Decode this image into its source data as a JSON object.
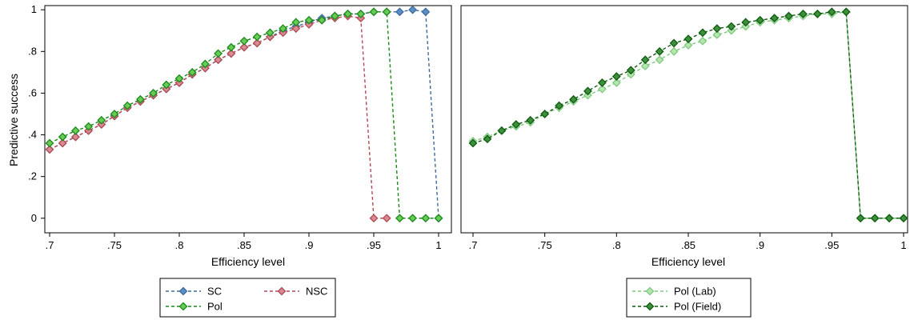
{
  "chart_data": [
    {
      "type": "line",
      "panel": "left",
      "xlabel": "Efficiency level",
      "ylabel": "Predictive success",
      "xlim": [
        0.7,
        1.0
      ],
      "ylim": [
        -0.07,
        1.02
      ],
      "xticks": [
        0.7,
        0.75,
        0.8,
        0.85,
        0.9,
        0.95,
        1
      ],
      "xtick_labels": [
        ".7",
        ".75",
        ".8",
        ".85",
        ".9",
        ".95",
        "1"
      ],
      "yticks": [
        0,
        0.2,
        0.4,
        0.6,
        0.8,
        1
      ],
      "ytick_labels": [
        "0",
        ".2",
        ".4",
        ".6",
        ".8",
        "1"
      ],
      "grid": false,
      "legend_position": "bottom",
      "x": [
        0.7,
        0.71,
        0.72,
        0.73,
        0.74,
        0.75,
        0.76,
        0.77,
        0.78,
        0.79,
        0.8,
        0.81,
        0.82,
        0.83,
        0.84,
        0.85,
        0.86,
        0.87,
        0.88,
        0.89,
        0.9,
        0.91,
        0.92,
        0.93,
        0.94,
        0.95,
        0.96,
        0.97,
        0.98,
        0.99,
        1.0
      ],
      "series": [
        {
          "name": "SC",
          "color": "#3f6a9c",
          "fill": "#5b8fc7",
          "dash": "4,3",
          "values": [
            0.33,
            0.36,
            0.39,
            0.42,
            0.45,
            0.49,
            0.53,
            0.56,
            0.59,
            0.62,
            0.65,
            0.69,
            0.72,
            0.76,
            0.79,
            0.82,
            0.84,
            0.87,
            0.9,
            0.92,
            0.94,
            0.96,
            0.97,
            0.98,
            0.98,
            0.99,
            0.99,
            0.99,
            1.0,
            0.99,
            0.0
          ]
        },
        {
          "name": "NSC",
          "color": "#b24a55",
          "fill": "#d98a92",
          "dash": "4,3",
          "values": [
            0.33,
            0.36,
            0.39,
            0.42,
            0.45,
            0.49,
            0.53,
            0.56,
            0.59,
            0.62,
            0.65,
            0.69,
            0.72,
            0.76,
            0.79,
            0.82,
            0.84,
            0.87,
            0.89,
            0.91,
            0.93,
            0.95,
            0.96,
            0.97,
            0.96,
            0.0,
            0.0,
            null,
            null,
            null,
            null
          ]
        },
        {
          "name": "Pol",
          "color": "#1a8a1a",
          "fill": "#66cc55",
          "dash": "4,3",
          "values": [
            0.36,
            0.39,
            0.42,
            0.44,
            0.47,
            0.5,
            0.54,
            0.57,
            0.6,
            0.64,
            0.67,
            0.7,
            0.74,
            0.79,
            0.82,
            0.85,
            0.87,
            0.89,
            0.91,
            0.94,
            0.95,
            0.95,
            0.97,
            0.98,
            0.98,
            0.99,
            0.99,
            0.0,
            0.0,
            0.0,
            0.0
          ]
        }
      ]
    },
    {
      "type": "line",
      "panel": "right",
      "xlabel": "Efficiency level",
      "ylabel": "",
      "xlim": [
        0.7,
        1.0
      ],
      "ylim": [
        -0.07,
        1.02
      ],
      "xticks": [
        0.7,
        0.75,
        0.8,
        0.85,
        0.9,
        0.95,
        1
      ],
      "xtick_labels": [
        ".7",
        ".75",
        ".8",
        ".85",
        ".9",
        ".95",
        "1"
      ],
      "grid": false,
      "legend_position": "bottom",
      "x": [
        0.7,
        0.71,
        0.72,
        0.73,
        0.74,
        0.75,
        0.76,
        0.77,
        0.78,
        0.79,
        0.8,
        0.81,
        0.82,
        0.83,
        0.84,
        0.85,
        0.86,
        0.87,
        0.88,
        0.89,
        0.9,
        0.91,
        0.92,
        0.93,
        0.94,
        0.95,
        0.96,
        0.97,
        0.98,
        0.99,
        1.0
      ],
      "series": [
        {
          "name": "Pol (Lab)",
          "color": "#7fc97f",
          "fill": "#b5e6b0",
          "dash": "4,3",
          "values": [
            0.37,
            0.39,
            0.42,
            0.44,
            0.46,
            0.5,
            0.53,
            0.56,
            0.59,
            0.62,
            0.65,
            0.69,
            0.73,
            0.76,
            0.8,
            0.83,
            0.85,
            0.88,
            0.9,
            0.92,
            0.94,
            0.95,
            0.96,
            0.97,
            0.98,
            0.98,
            0.99,
            0.0,
            0.0,
            0.0,
            0.0
          ]
        },
        {
          "name": "Pol (Field)",
          "color": "#0d5c0d",
          "fill": "#3d8f3d",
          "dash": "4,3",
          "values": [
            0.36,
            0.38,
            0.42,
            0.45,
            0.47,
            0.5,
            0.54,
            0.57,
            0.61,
            0.65,
            0.68,
            0.71,
            0.76,
            0.8,
            0.84,
            0.86,
            0.89,
            0.91,
            0.92,
            0.94,
            0.95,
            0.96,
            0.97,
            0.98,
            0.98,
            0.99,
            0.99,
            0.0,
            0.0,
            0.0,
            0.0
          ]
        }
      ]
    }
  ]
}
